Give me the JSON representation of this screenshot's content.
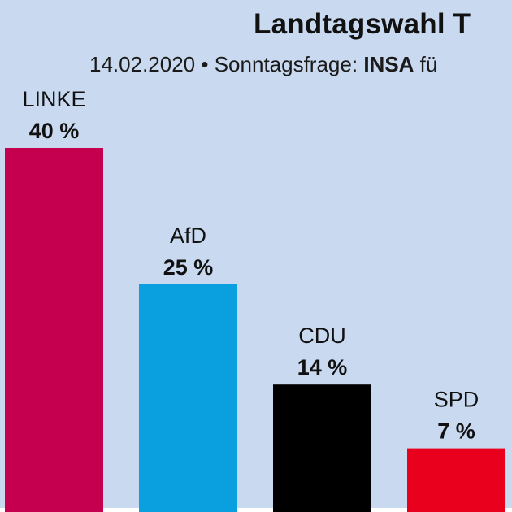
{
  "chart_data": {
    "type": "bar",
    "title": "Landtagswahl T",
    "subtitle": {
      "date": "14.02.2020",
      "separator": "•",
      "label": "Sonntagsfrage:",
      "pollster": "INSA",
      "suffix": "fü"
    },
    "categories": [
      "LINKE",
      "AfD",
      "CDU",
      "SPD"
    ],
    "values": [
      40,
      25,
      14,
      7
    ],
    "value_labels": [
      "40 %",
      "25 %",
      "14 %",
      "7 %"
    ],
    "unit": "%",
    "colors": [
      "#c4004f",
      "#0aa0e0",
      "#000000",
      "#e8001c"
    ],
    "background": "#c9d9ef",
    "ylim": [
      0,
      40
    ],
    "grid": false,
    "legend": "none"
  }
}
